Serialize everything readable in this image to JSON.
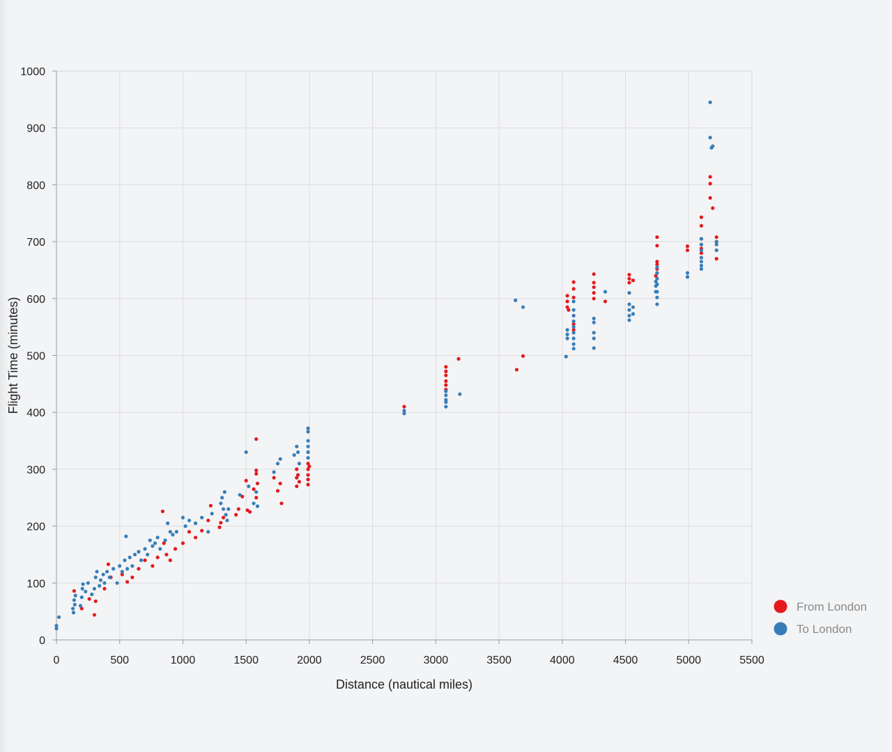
{
  "chart_data": {
    "type": "scatter",
    "xlabel": "Distance (nautical miles)",
    "ylabel": "Flight Time (minutes)",
    "xlim": [
      0,
      5500
    ],
    "ylim": [
      0,
      1000
    ],
    "xticks": [
      0,
      500,
      1000,
      1500,
      2000,
      2500,
      3000,
      3500,
      4000,
      4500,
      5000,
      5500
    ],
    "yticks": [
      0,
      100,
      200,
      300,
      400,
      500,
      600,
      700,
      800,
      900,
      1000
    ],
    "grid": true,
    "legend_position": "bottom-right",
    "series": [
      {
        "name": "From London",
        "color": "#e41a1c",
        "points": [
          [
            140,
            86
          ],
          [
            200,
            55
          ],
          [
            260,
            72
          ],
          [
            300,
            44
          ],
          [
            310,
            68
          ],
          [
            380,
            90
          ],
          [
            410,
            133
          ],
          [
            430,
            110
          ],
          [
            520,
            115
          ],
          [
            560,
            102
          ],
          [
            600,
            110
          ],
          [
            650,
            125
          ],
          [
            700,
            140
          ],
          [
            760,
            130
          ],
          [
            800,
            145
          ],
          [
            840,
            226
          ],
          [
            850,
            170
          ],
          [
            870,
            150
          ],
          [
            900,
            140
          ],
          [
            940,
            160
          ],
          [
            1000,
            170
          ],
          [
            1050,
            190
          ],
          [
            1100,
            180
          ],
          [
            1150,
            192
          ],
          [
            1200,
            210
          ],
          [
            1220,
            236
          ],
          [
            1290,
            198
          ],
          [
            1300,
            206
          ],
          [
            1320,
            215
          ],
          [
            1420,
            220
          ],
          [
            1440,
            230
          ],
          [
            1470,
            252
          ],
          [
            1500,
            280
          ],
          [
            1510,
            228
          ],
          [
            1530,
            225
          ],
          [
            1560,
            265
          ],
          [
            1580,
            353
          ],
          [
            1580,
            298
          ],
          [
            1580,
            292
          ],
          [
            1590,
            275
          ],
          [
            1580,
            250
          ],
          [
            1720,
            285
          ],
          [
            1750,
            262
          ],
          [
            1770,
            275
          ],
          [
            1780,
            240
          ],
          [
            1900,
            300
          ],
          [
            1900,
            285
          ],
          [
            1900,
            270
          ],
          [
            1910,
            290
          ],
          [
            1920,
            278
          ],
          [
            1990,
            310
          ],
          [
            1990,
            300
          ],
          [
            1990,
            290
          ],
          [
            1990,
            282
          ],
          [
            1990,
            273
          ],
          [
            2000,
            305
          ],
          [
            2750,
            410
          ],
          [
            3080,
            480
          ],
          [
            3080,
            472
          ],
          [
            3080,
            465
          ],
          [
            3080,
            455
          ],
          [
            3080,
            448
          ],
          [
            3080,
            440
          ],
          [
            3180,
            494
          ],
          [
            3640,
            475
          ],
          [
            3690,
            499
          ],
          [
            4040,
            605
          ],
          [
            4040,
            595
          ],
          [
            4040,
            585
          ],
          [
            4050,
            580
          ],
          [
            4090,
            629
          ],
          [
            4090,
            617
          ],
          [
            4090,
            602
          ],
          [
            4090,
            570
          ],
          [
            4090,
            555
          ],
          [
            4090,
            545
          ],
          [
            4250,
            643
          ],
          [
            4250,
            628
          ],
          [
            4250,
            620
          ],
          [
            4250,
            610
          ],
          [
            4250,
            600
          ],
          [
            4340,
            595
          ],
          [
            4530,
            642
          ],
          [
            4530,
            635
          ],
          [
            4530,
            628
          ],
          [
            4560,
            632
          ],
          [
            4740,
            640
          ],
          [
            4750,
            708
          ],
          [
            4750,
            693
          ],
          [
            4750,
            665
          ],
          [
            4750,
            660
          ],
          [
            4750,
            652
          ],
          [
            4750,
            645
          ],
          [
            4990,
            692
          ],
          [
            4990,
            685
          ],
          [
            5100,
            743
          ],
          [
            5100,
            728
          ],
          [
            5100,
            705
          ],
          [
            5100,
            695
          ],
          [
            5100,
            688
          ],
          [
            5100,
            680
          ],
          [
            5170,
            814
          ],
          [
            5170,
            802
          ],
          [
            5170,
            777
          ],
          [
            5190,
            759
          ],
          [
            5220,
            708
          ],
          [
            5220,
            700
          ],
          [
            5220,
            670
          ]
        ]
      },
      {
        "name": "To London",
        "color": "#377eb8",
        "points": [
          [
            0,
            25
          ],
          [
            0,
            20
          ],
          [
            20,
            40
          ],
          [
            130,
            55
          ],
          [
            135,
            48
          ],
          [
            140,
            70
          ],
          [
            145,
            62
          ],
          [
            150,
            78
          ],
          [
            190,
            60
          ],
          [
            200,
            75
          ],
          [
            205,
            90
          ],
          [
            210,
            98
          ],
          [
            230,
            85
          ],
          [
            250,
            100
          ],
          [
            280,
            80
          ],
          [
            300,
            90
          ],
          [
            310,
            110
          ],
          [
            320,
            120
          ],
          [
            340,
            95
          ],
          [
            350,
            105
          ],
          [
            370,
            115
          ],
          [
            380,
            100
          ],
          [
            400,
            120
          ],
          [
            420,
            110
          ],
          [
            450,
            125
          ],
          [
            480,
            100
          ],
          [
            500,
            130
          ],
          [
            520,
            120
          ],
          [
            540,
            140
          ],
          [
            550,
            182
          ],
          [
            560,
            125
          ],
          [
            580,
            145
          ],
          [
            600,
            130
          ],
          [
            620,
            150
          ],
          [
            650,
            155
          ],
          [
            670,
            140
          ],
          [
            700,
            160
          ],
          [
            720,
            150
          ],
          [
            740,
            175
          ],
          [
            760,
            165
          ],
          [
            780,
            170
          ],
          [
            800,
            180
          ],
          [
            820,
            160
          ],
          [
            860,
            175
          ],
          [
            880,
            205
          ],
          [
            900,
            190
          ],
          [
            920,
            185
          ],
          [
            950,
            190
          ],
          [
            1000,
            215
          ],
          [
            1020,
            200
          ],
          [
            1050,
            210
          ],
          [
            1100,
            205
          ],
          [
            1150,
            215
          ],
          [
            1200,
            190
          ],
          [
            1230,
            222
          ],
          [
            1300,
            240
          ],
          [
            1310,
            250
          ],
          [
            1320,
            230
          ],
          [
            1330,
            260
          ],
          [
            1340,
            220
          ],
          [
            1350,
            210
          ],
          [
            1360,
            230
          ],
          [
            1450,
            255
          ],
          [
            1500,
            330
          ],
          [
            1520,
            270
          ],
          [
            1560,
            240
          ],
          [
            1580,
            260
          ],
          [
            1590,
            235
          ],
          [
            1720,
            295
          ],
          [
            1750,
            310
          ],
          [
            1770,
            318
          ],
          [
            1880,
            325
          ],
          [
            1900,
            340
          ],
          [
            1910,
            330
          ],
          [
            1920,
            310
          ],
          [
            1990,
            372
          ],
          [
            1990,
            366
          ],
          [
            1990,
            350
          ],
          [
            1990,
            340
          ],
          [
            1990,
            330
          ],
          [
            1990,
            320
          ],
          [
            2750,
            403
          ],
          [
            2750,
            398
          ],
          [
            3080,
            437
          ],
          [
            3080,
            430
          ],
          [
            3080,
            422
          ],
          [
            3080,
            418
          ],
          [
            3080,
            410
          ],
          [
            3190,
            432
          ],
          [
            3630,
            597
          ],
          [
            3690,
            585
          ],
          [
            4030,
            498
          ],
          [
            4040,
            545
          ],
          [
            4040,
            537
          ],
          [
            4040,
            530
          ],
          [
            4090,
            595
          ],
          [
            4090,
            580
          ],
          [
            4090,
            570
          ],
          [
            4090,
            560
          ],
          [
            4090,
            550
          ],
          [
            4090,
            540
          ],
          [
            4090,
            530
          ],
          [
            4090,
            520
          ],
          [
            4090,
            512
          ],
          [
            4250,
            565
          ],
          [
            4250,
            558
          ],
          [
            4250,
            540
          ],
          [
            4250,
            530
          ],
          [
            4250,
            513
          ],
          [
            4340,
            612
          ],
          [
            4530,
            610
          ],
          [
            4530,
            590
          ],
          [
            4530,
            580
          ],
          [
            4530,
            570
          ],
          [
            4530,
            562
          ],
          [
            4560,
            585
          ],
          [
            4560,
            573
          ],
          [
            4740,
            630
          ],
          [
            4740,
            622
          ],
          [
            4740,
            612
          ],
          [
            4750,
            655
          ],
          [
            4750,
            645
          ],
          [
            4750,
            635
          ],
          [
            4750,
            625
          ],
          [
            4750,
            612
          ],
          [
            4750,
            602
          ],
          [
            4750,
            590
          ],
          [
            4990,
            645
          ],
          [
            4990,
            638
          ],
          [
            5100,
            705
          ],
          [
            5100,
            695
          ],
          [
            5100,
            685
          ],
          [
            5100,
            672
          ],
          [
            5100,
            665
          ],
          [
            5100,
            658
          ],
          [
            5100,
            652
          ],
          [
            5170,
            945
          ],
          [
            5170,
            883
          ],
          [
            5180,
            865
          ],
          [
            5190,
            868
          ],
          [
            5220,
            700
          ],
          [
            5220,
            695
          ],
          [
            5220,
            685
          ]
        ]
      }
    ]
  }
}
